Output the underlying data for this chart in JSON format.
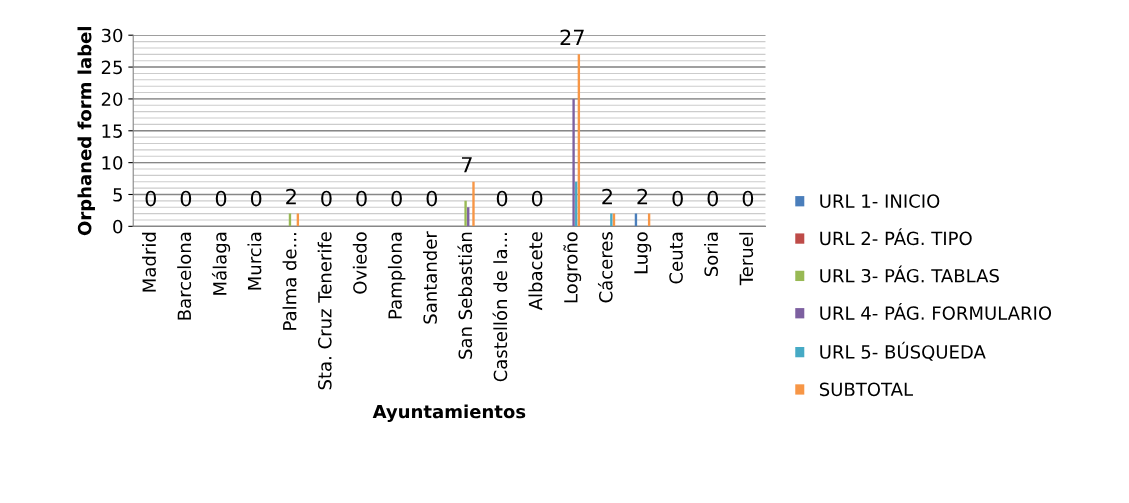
{
  "chart_data": {
    "type": "bar",
    "xlabel": "Ayuntamientos",
    "ylabel": "Orphaned form label",
    "categories": [
      "Madrid",
      "Barcelona",
      "Málaga",
      "Murcia",
      "Palma de...",
      "Sta. Cruz Tenerife",
      "Oviedo",
      "Pamplona",
      "Santander",
      "San Sebastián",
      "Castellón de la...",
      "Albacete",
      "Logroño",
      "Cáceres",
      "Lugo",
      "Ceuta",
      "Soria",
      "Teruel"
    ],
    "series": [
      {
        "name": "URL 1- INICIO",
        "color": "#4a7ebb",
        "values": [
          0,
          0,
          0,
          0,
          0,
          0,
          0,
          0,
          0,
          0,
          0,
          0,
          0,
          0,
          2,
          0,
          0,
          0
        ]
      },
      {
        "name": "URL 2- PÁG. TIPO",
        "color": "#be4b48",
        "values": [
          0,
          0,
          0,
          0,
          0,
          0,
          0,
          0,
          0,
          0,
          0,
          0,
          0,
          0,
          0,
          0,
          0,
          0
        ]
      },
      {
        "name": "URL 3- PÁG. TABLAS",
        "color": "#98b954",
        "values": [
          0,
          0,
          0,
          0,
          2,
          0,
          0,
          0,
          0,
          4,
          0,
          0,
          0,
          0,
          0,
          0,
          0,
          0
        ]
      },
      {
        "name": "URL 4- PÁG. FORMULARIO",
        "color": "#7d60a0",
        "values": [
          0,
          0,
          0,
          0,
          0,
          0,
          0,
          0,
          0,
          3,
          0,
          0,
          20,
          0,
          0,
          0,
          0,
          0
        ]
      },
      {
        "name": "URL 5- BÚSQUEDA",
        "color": "#46aac5",
        "values": [
          0,
          0,
          0,
          0,
          0,
          0,
          0,
          0,
          0,
          0,
          0,
          0,
          7,
          2,
          0,
          0,
          0,
          0
        ]
      },
      {
        "name": "SUBTOTAL",
        "color": "#f79646",
        "values": [
          0,
          0,
          0,
          0,
          2,
          0,
          0,
          0,
          0,
          7,
          0,
          0,
          27,
          2,
          2,
          0,
          0,
          0
        ],
        "value_labels": [
          "0",
          "0",
          "0",
          "0",
          "2",
          "0",
          "0",
          "0",
          "0",
          "7",
          "0",
          "0",
          "27",
          "2",
          "2",
          "0",
          "0",
          "0"
        ]
      }
    ],
    "ylim": [
      0,
      30
    ],
    "yticks": [
      0,
      5,
      10,
      15,
      20,
      25,
      30
    ],
    "grid": "y",
    "legend": "right"
  }
}
